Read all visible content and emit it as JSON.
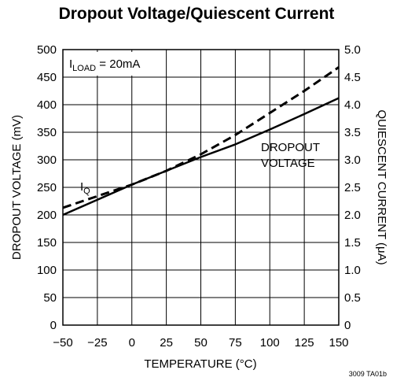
{
  "chart_data": {
    "type": "line",
    "title": "Dropout Voltage/Quiescent Current",
    "xlabel": "TEMPERATURE (°C)",
    "ylabel_left": "DROPOUT VOLTAGE (mV)",
    "ylabel_right": "QUIESCENT CURRENT (μA)",
    "xlim": [
      -50,
      150
    ],
    "ylim_left": [
      0,
      500
    ],
    "ylim_right": [
      0,
      5.0
    ],
    "x_ticks": [
      "−50",
      "−25",
      "0",
      "25",
      "50",
      "75",
      "100",
      "125",
      "150"
    ],
    "y_ticks_left": [
      "0",
      "50",
      "100",
      "150",
      "200",
      "250",
      "300",
      "350",
      "400",
      "450",
      "500"
    ],
    "y_ticks_right": [
      "0",
      "0.5",
      "1.0",
      "1.5",
      "2.0",
      "2.5",
      "3.0",
      "3.5",
      "4.0",
      "4.5",
      "5.0"
    ],
    "grid": true,
    "condition": {
      "main": "I",
      "sub": "LOAD",
      "rest": " = 20mA"
    },
    "series": [
      {
        "name": "DROPOUT VOLTAGE",
        "axis": "left",
        "style": "solid",
        "x": [
          -50,
          0,
          25,
          50,
          75,
          100,
          125,
          150
        ],
        "y": [
          200,
          255,
          280,
          305,
          328,
          355,
          383,
          412
        ]
      },
      {
        "name": "I",
        "name_sub": "Q",
        "axis": "right",
        "style": "dashed",
        "x": [
          -50,
          0,
          25,
          50,
          75,
          100,
          125,
          150
        ],
        "y": [
          2.13,
          2.55,
          2.8,
          3.1,
          3.45,
          3.85,
          4.25,
          4.68
        ]
      }
    ],
    "annotations": {
      "dropout_line1": "DROPOUT",
      "dropout_line2": "VOLTAGE"
    },
    "figure_id": "3009 TA01b"
  }
}
